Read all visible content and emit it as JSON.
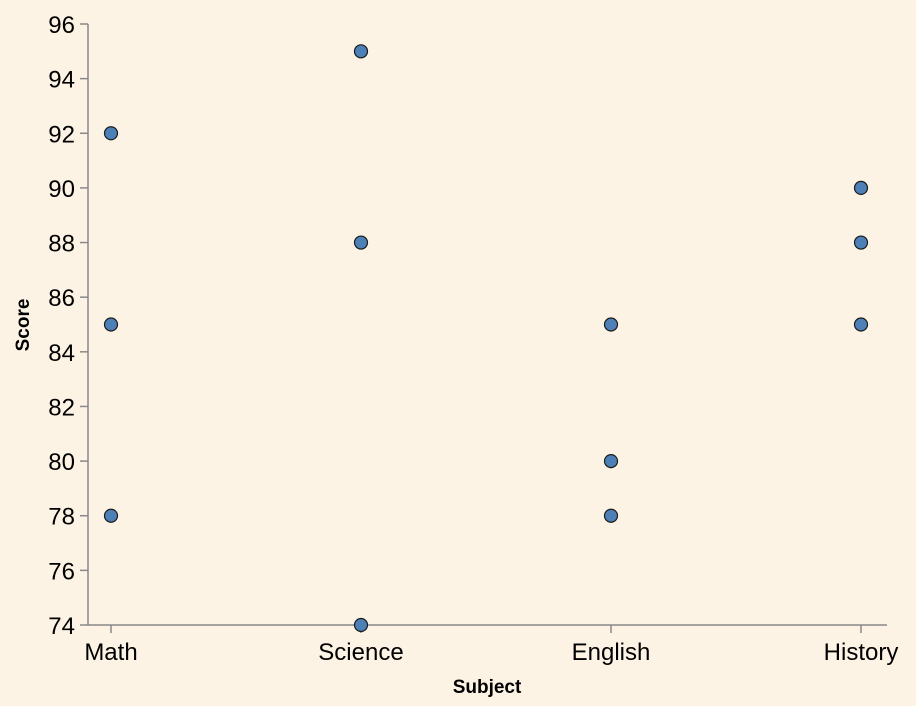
{
  "chart_data": {
    "type": "scatter",
    "title": "",
    "xlabel": "Subject",
    "ylabel": "Score",
    "categories": [
      "Math",
      "Science",
      "English",
      "History"
    ],
    "points": [
      {
        "subject": "Math",
        "score": 92
      },
      {
        "subject": "Math",
        "score": 85
      },
      {
        "subject": "Math",
        "score": 78
      },
      {
        "subject": "Science",
        "score": 95
      },
      {
        "subject": "Science",
        "score": 88
      },
      {
        "subject": "Science",
        "score": 74
      },
      {
        "subject": "English",
        "score": 85
      },
      {
        "subject": "English",
        "score": 80
      },
      {
        "subject": "English",
        "score": 78
      },
      {
        "subject": "History",
        "score": 90
      },
      {
        "subject": "History",
        "score": 88
      },
      {
        "subject": "History",
        "score": 85
      }
    ],
    "ylim": [
      74,
      96
    ],
    "yticks": [
      "74",
      "76",
      "78",
      "80",
      "82",
      "84",
      "86",
      "88",
      "90",
      "92",
      "94",
      "96"
    ],
    "grid": false,
    "colors": {
      "background": "#fdf3e5",
      "point_fill": "#4c80b6",
      "point_stroke": "#1a1a1a",
      "axis": "#888888",
      "text": "#000000"
    }
  }
}
